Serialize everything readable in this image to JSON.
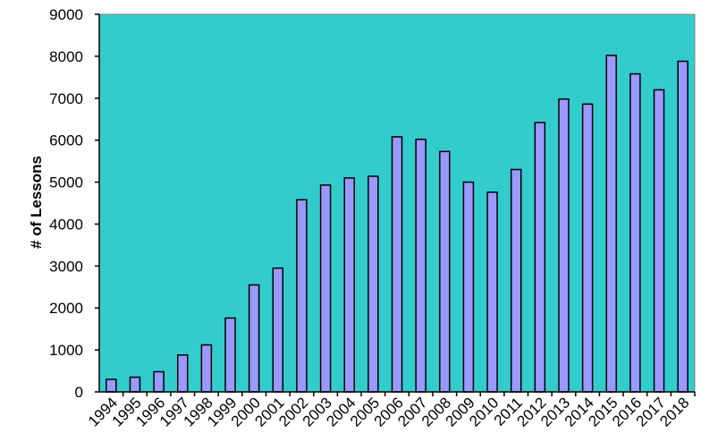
{
  "chart_data": {
    "type": "bar",
    "title": "",
    "xlabel": "",
    "ylabel": "# of Lessons",
    "ylim": [
      0,
      9000
    ],
    "yticks": [
      0,
      1000,
      2000,
      3000,
      4000,
      5000,
      6000,
      7000,
      8000,
      9000
    ],
    "grid": false,
    "legend": "none",
    "categories": [
      "1994",
      "1995",
      "1996",
      "1997",
      "1998",
      "1999",
      "2000",
      "2001",
      "2002",
      "2003",
      "2004",
      "2005",
      "2006",
      "2007",
      "2008",
      "2009",
      "2010",
      "2011",
      "2012",
      "2013",
      "2014",
      "2015",
      "2016",
      "2017",
      "2018"
    ],
    "values": [
      300,
      350,
      480,
      880,
      1120,
      1760,
      2550,
      2950,
      4580,
      4930,
      5100,
      5140,
      6080,
      6020,
      5730,
      5000,
      4760,
      5300,
      6420,
      6980,
      6860,
      8020,
      7580,
      7200,
      7880
    ],
    "colors": {
      "plot_background": "#33CCCC",
      "bar_fill": "#9999FF",
      "bar_stroke": "#000000",
      "axis": "#000000"
    }
  }
}
